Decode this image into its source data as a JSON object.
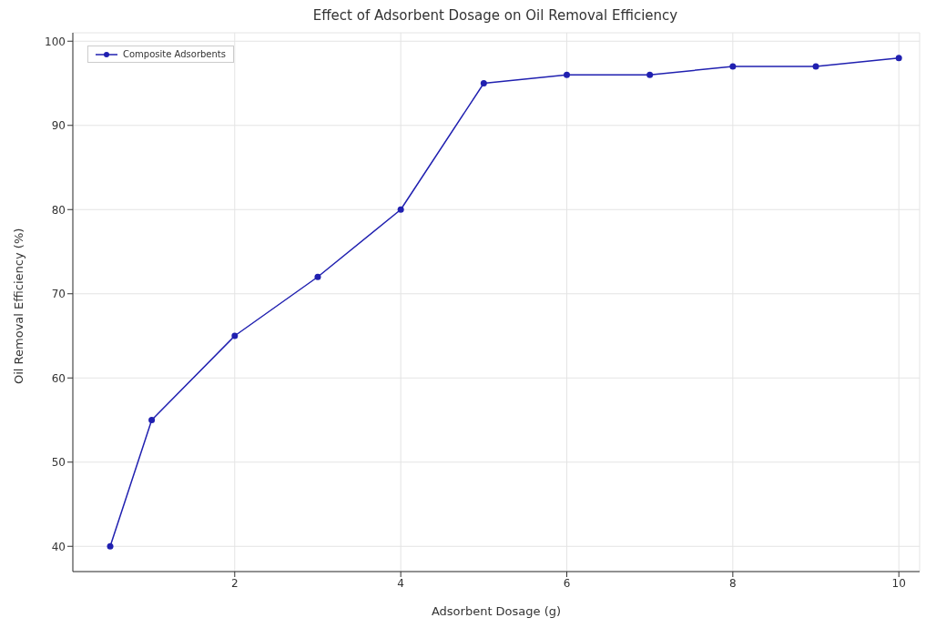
{
  "chart_data": {
    "type": "line",
    "title": "Effect of Adsorbent Dosage on Oil Removal Efficiency",
    "xlabel": "Adsorbent Dosage (g)",
    "ylabel": "Oil Removal Efficiency (%)",
    "x": [
      0.5,
      1,
      2,
      3,
      4,
      5,
      6,
      7,
      8,
      9,
      10
    ],
    "series": [
      {
        "name": "Composite Adsorbents",
        "color": "#2020b0",
        "values": [
          40,
          55,
          65,
          72,
          80,
          95,
          96,
          96,
          97,
          97,
          98
        ]
      }
    ],
    "xlim": [
      0.05,
      10.25
    ],
    "xticks": [
      2,
      4,
      6,
      8,
      10
    ],
    "ylim": [
      37,
      101
    ],
    "yticks": [
      40,
      50,
      60,
      70,
      80,
      90,
      100
    ],
    "grid": true,
    "legend": "top left",
    "marker": "circle",
    "line_style": "solid"
  }
}
